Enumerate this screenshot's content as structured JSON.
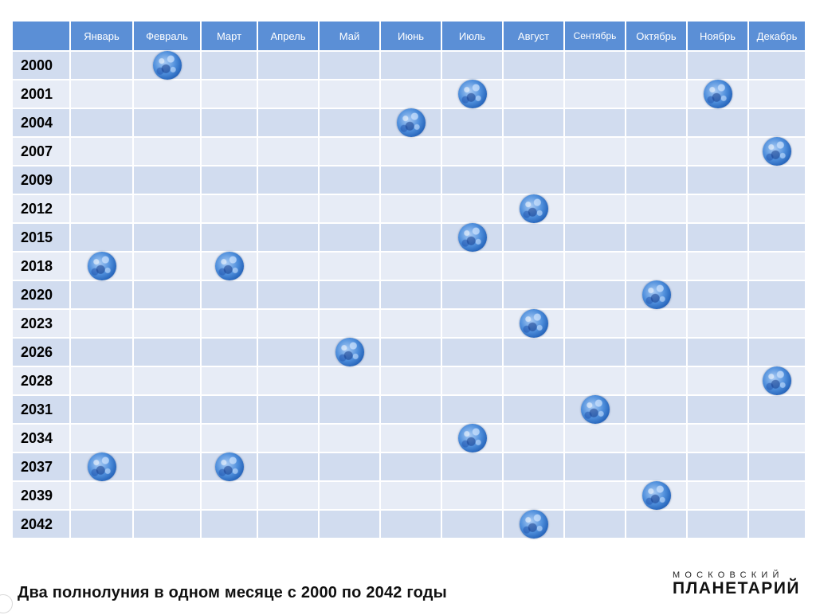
{
  "months": [
    "Январь",
    "Февраль",
    "Март",
    "Апрель",
    "Май",
    "Июнь",
    "Июль",
    "Август",
    "Сентябрь",
    "Октябрь",
    "Ноябрь",
    "Декабрь"
  ],
  "rows": [
    {
      "year": "2000",
      "moons": [
        2
      ]
    },
    {
      "year": "2001",
      "moons": [
        7,
        11
      ]
    },
    {
      "year": "2004",
      "moons": [
        6
      ]
    },
    {
      "year": "2007",
      "moons": [
        12
      ]
    },
    {
      "year": "2009",
      "moons": []
    },
    {
      "year": "2012",
      "moons": [
        8
      ]
    },
    {
      "year": "2015",
      "moons": [
        7
      ]
    },
    {
      "year": "2018",
      "moons": [
        1,
        3
      ]
    },
    {
      "year": "2020",
      "moons": [
        10
      ]
    },
    {
      "year": "2023",
      "moons": [
        8
      ]
    },
    {
      "year": "2026",
      "moons": [
        5
      ]
    },
    {
      "year": "2028",
      "moons": [
        12
      ]
    },
    {
      "year": "2031",
      "moons": [
        9
      ]
    },
    {
      "year": "2034",
      "moons": [
        7
      ]
    },
    {
      "year": "2037",
      "moons": [
        1,
        3
      ]
    },
    {
      "year": "2039",
      "moons": [
        10
      ]
    },
    {
      "year": "2042",
      "moons": [
        8
      ]
    }
  ],
  "icon": "full-moon-icon",
  "caption": "Два полнолуния в одном месяце с 2000 по 2042 годы",
  "brand": {
    "top": "МОСКОВСКИЙ",
    "bottom": "ПЛАНЕТАРИЙ"
  },
  "colors": {
    "header": "#5b8fd6",
    "row_dark": "#d1dcef",
    "row_light": "#e7ecf6"
  }
}
